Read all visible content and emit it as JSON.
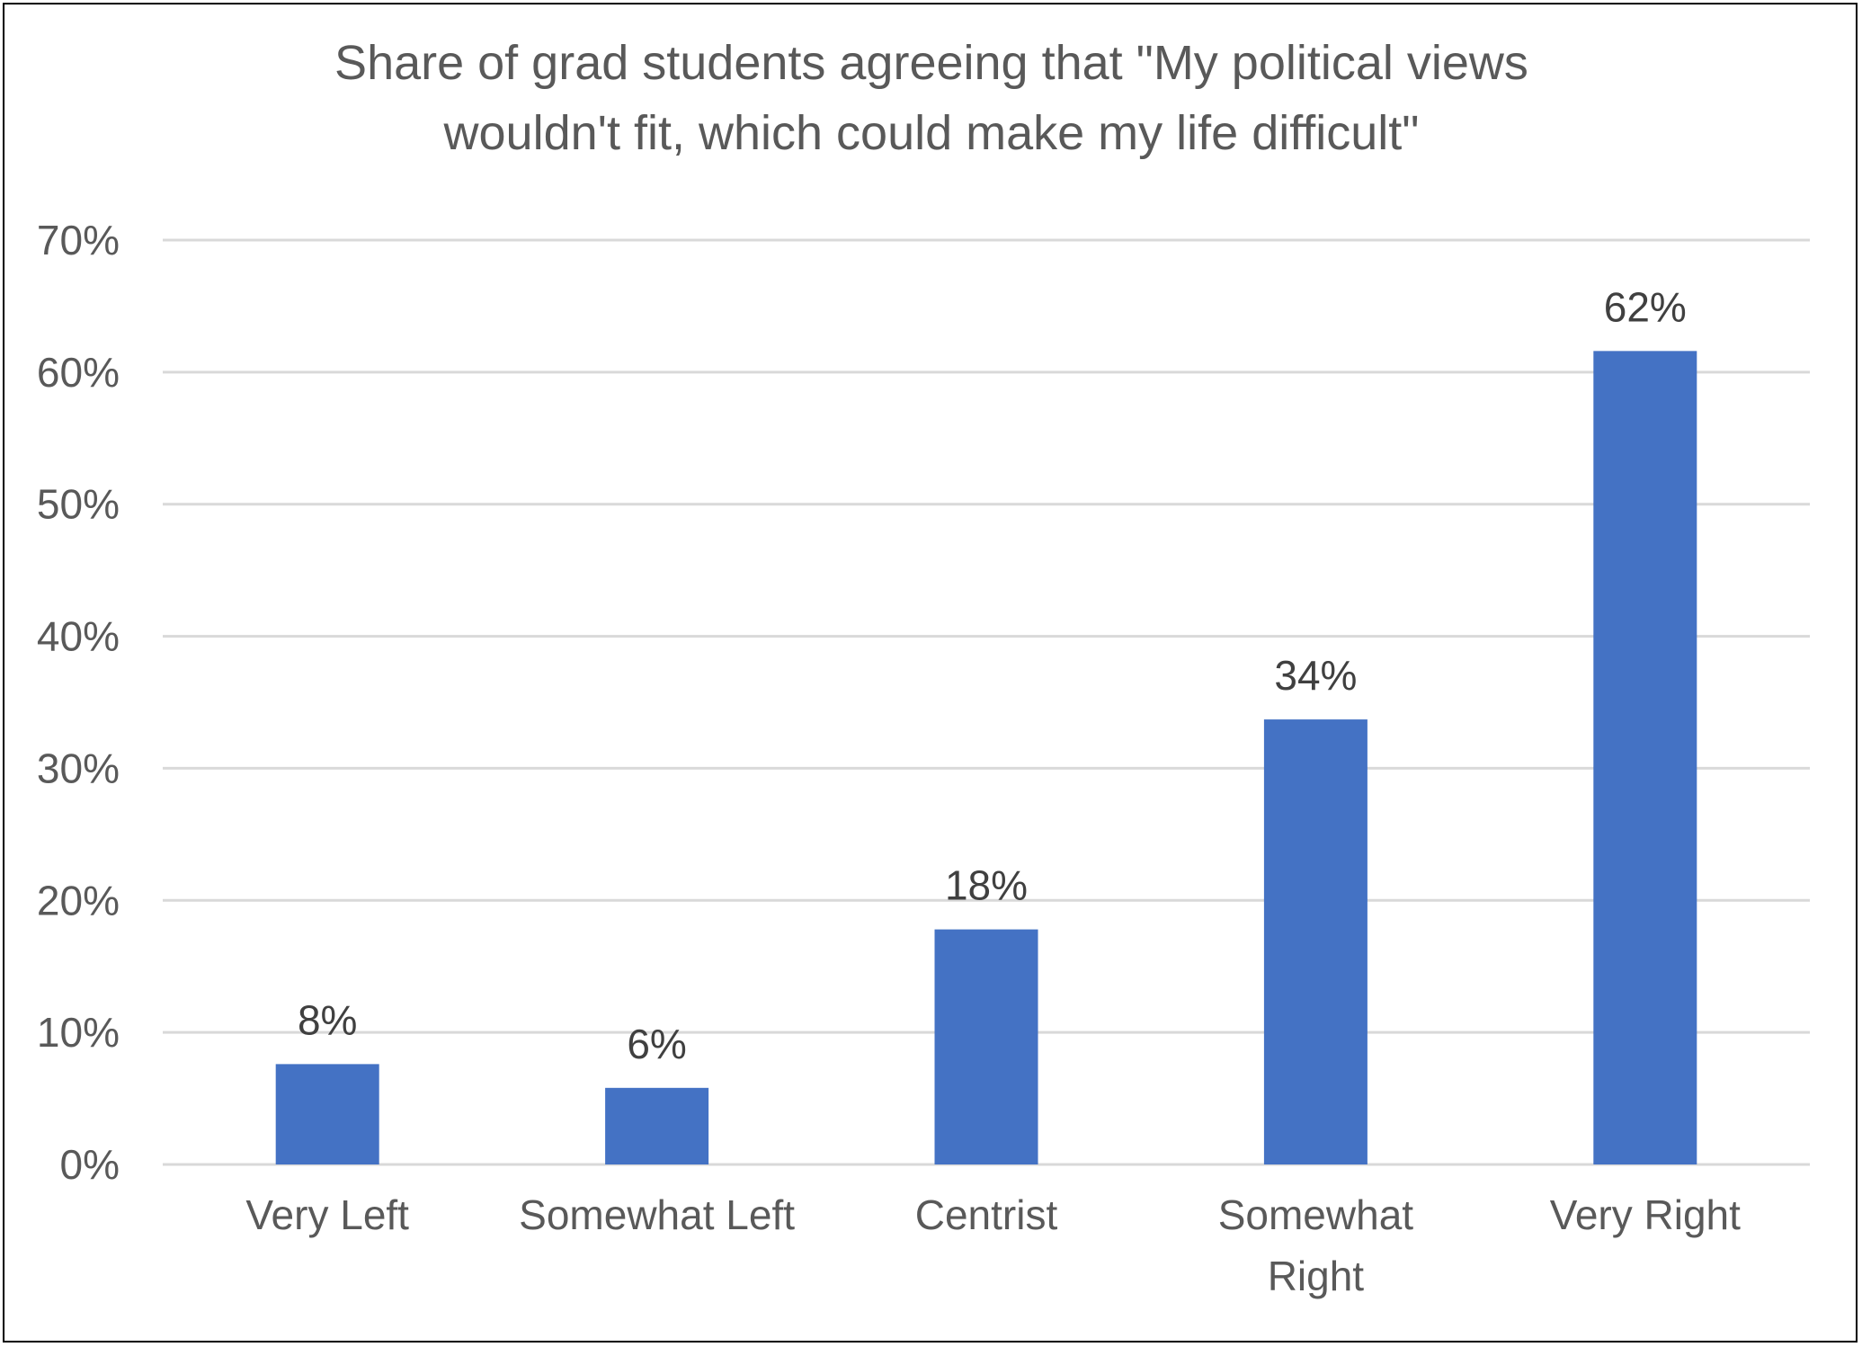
{
  "chart_data": {
    "type": "bar",
    "title": "Share of grad students agreeing that \"My political views wouldn't fit, which could make my life difficult\"",
    "title_lines": [
      "Share of grad students agreeing that \"My political views",
      "wouldn't fit, which could make my life difficult\""
    ],
    "categories": [
      "Very Left",
      "Somewhat Left",
      "Centrist",
      "Somewhat Right",
      "Very Right"
    ],
    "category_lines": [
      [
        "Very Left"
      ],
      [
        "Somewhat Left"
      ],
      [
        "Centrist"
      ],
      [
        "Somewhat",
        "Right"
      ],
      [
        "Very Right"
      ]
    ],
    "values": [
      7.6,
      5.8,
      17.8,
      33.7,
      61.6
    ],
    "data_labels": [
      "8%",
      "6%",
      "18%",
      "34%",
      "62%"
    ],
    "yticks": [
      0,
      10,
      20,
      30,
      40,
      50,
      60,
      70
    ],
    "ytick_labels": [
      "0%",
      "10%",
      "20%",
      "30%",
      "40%",
      "50%",
      "60%",
      "70%"
    ],
    "ylim": [
      0,
      70
    ],
    "xlabel": "",
    "ylabel": "",
    "grid": true,
    "bar_color": "#4472C4"
  }
}
